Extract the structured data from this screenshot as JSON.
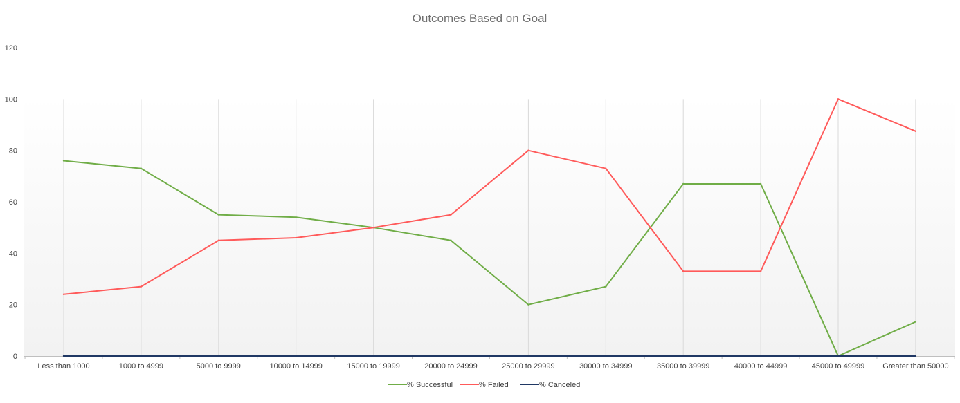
{
  "chart_data": {
    "type": "line",
    "title": "Outcomes Based on Goal",
    "xlabel": "",
    "ylabel": "",
    "categories": [
      "Less than 1000",
      "1000 to 4999",
      "5000 to 9999",
      "10000 to 14999",
      "15000 to 19999",
      "20000 to 24999",
      "25000 to 29999",
      "30000 to 34999",
      "35000 to 39999",
      "40000 to 44999",
      "45000 to 49999",
      "Greater than 50000"
    ],
    "ylim": [
      0,
      120
    ],
    "yticks": [
      "0",
      "20",
      "40",
      "60",
      "80",
      "100",
      "120"
    ],
    "grid": "vertical",
    "legend_position": "bottom",
    "series": [
      {
        "name": "% Successful",
        "color": "#70ad47",
        "values": [
          76,
          73,
          55,
          54,
          50,
          45,
          20,
          27,
          67,
          67,
          0,
          13.33
        ]
      },
      {
        "name": "% Failed",
        "color": "#ff5a5a",
        "values": [
          24,
          27,
          45,
          46,
          50,
          55,
          80,
          73,
          33,
          33,
          100,
          87.5
        ]
      },
      {
        "name": "% Canceled",
        "color": "#203864",
        "values": [
          0,
          0,
          0,
          0,
          0,
          0,
          0,
          0,
          0,
          0,
          0,
          0
        ]
      }
    ]
  }
}
